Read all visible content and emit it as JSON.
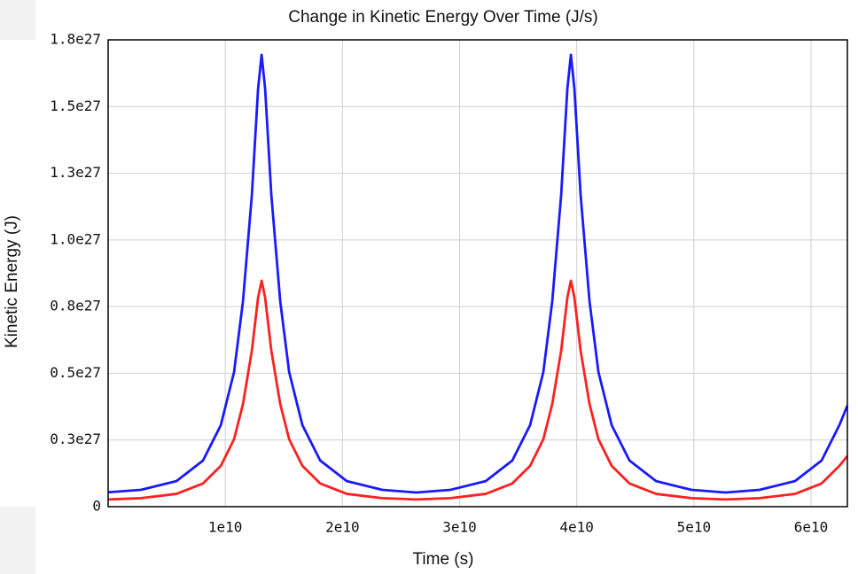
{
  "chart_data": {
    "type": "line",
    "title": "Change in Kinetic Energy Over Time (J/s)",
    "x_label": "Time (s)",
    "y_label": "Kinetic Energy (J)",
    "x": [
      0,
      2800000000.0,
      5830000000.0,
      8100000000.0,
      9620000000.0,
      10750000000.0,
      11510000000.0,
      12270000000.0,
      12800000000.0,
      13100000000.0,
      13400000000.0,
      13930000000.0,
      14690000000.0,
      15450000000.0,
      16580000000.0,
      18100000000.0,
      20370000000.0,
      23400000000.0,
      26300000000.0,
      29200000000.0,
      32230000000.0,
      34500000000.0,
      36020000000.0,
      37150000000.0,
      37910000000.0,
      38670000000.0,
      39200000000.0,
      39500000000.0,
      39800000000.0,
      40330000000.0,
      41090000000.0,
      41850000000.0,
      42980000000.0,
      44500000000.0,
      46770000000.0,
      49800000000.0,
      52700000000.0,
      55600000000.0,
      58630000000.0,
      60900000000.0,
      62420000000.0,
      63100000000.0
    ],
    "series": [
      {
        "color": "#1a1aff",
        "values": [
          5.4e+25,
          6.3e+25,
          9.6e+25,
          1.73e+26,
          3.06e+26,
          5.05e+26,
          7.7e+26,
          1.169e+27,
          1.567e+27,
          1.694e+27,
          1.567e+27,
          1.169e+27,
          7.7e+26,
          5.05e+26,
          3.06e+26,
          1.73e+26,
          9.6e+25,
          6.3e+25,
          5.3e+25,
          6.3e+25,
          9.6e+25,
          1.73e+26,
          3.06e+26,
          5.05e+26,
          7.7e+26,
          1.169e+27,
          1.567e+27,
          1.694e+27,
          1.567e+27,
          1.169e+27,
          7.7e+26,
          5.05e+26,
          3.06e+26,
          1.73e+26,
          9.6e+25,
          6.3e+25,
          5.3e+25,
          6.3e+25,
          9.6e+25,
          1.73e+26,
          3.06e+26,
          3.79e+26
        ]
      },
      {
        "color": "#ff2020",
        "values": [
          2.7e+25,
          3.2e+25,
          4.8e+25,
          8.7e+25,
          1.53e+26,
          2.53e+26,
          3.85e+26,
          5.85e+26,
          7.84e+26,
          8.47e+26,
          7.84e+26,
          5.85e+26,
          3.85e+26,
          2.53e+26,
          1.53e+26,
          8.7e+25,
          4.8e+25,
          3.2e+25,
          2.7e+25,
          3.2e+25,
          4.8e+25,
          8.7e+25,
          1.53e+26,
          2.53e+26,
          3.85e+26,
          5.85e+26,
          7.84e+26,
          8.47e+26,
          7.84e+26,
          5.85e+26,
          3.85e+26,
          2.53e+26,
          1.53e+26,
          8.7e+25,
          4.8e+25,
          3.2e+25,
          2.7e+25,
          3.2e+25,
          4.8e+25,
          8.7e+25,
          1.53e+26,
          1.9e+26
        ]
      }
    ],
    "xlim": [
      0,
      63100000000.0
    ],
    "xticks": [
      {
        "value": 10000000000.0,
        "label": "1e10"
      },
      {
        "value": 20000000000.0,
        "label": "2e10"
      },
      {
        "value": 30000000000.0,
        "label": "3e10"
      },
      {
        "value": 40000000000.0,
        "label": "4e10"
      },
      {
        "value": 50000000000.0,
        "label": "5e10"
      },
      {
        "value": 60000000000.0,
        "label": "6e10"
      }
    ],
    "ylim": [
      0,
      1.75e+27
    ],
    "yticks": [
      0,
      {
        "value": 2.5e+26,
        "label": "0.3e27"
      },
      {
        "value": 5e+26,
        "label": "0.5e27"
      },
      {
        "value": 7.5e+26,
        "label": "0.8e27"
      },
      {
        "value": 1e+27,
        "label": "1.0e27"
      },
      {
        "value": 1.25e+27,
        "label": "1.3e27"
      },
      {
        "value": 1.5e+27,
        "label": "1.5e27"
      },
      {
        "value": 1.75e+27,
        "label": "1.8e27"
      }
    ],
    "grid": true
  }
}
